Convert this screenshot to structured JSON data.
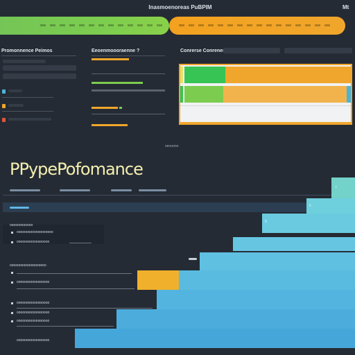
{
  "header": {
    "title": "Inasmoenoreas PuBPIM",
    "right_label": "Mt"
  },
  "panels": [
    {
      "title": "Promonnence Peimos"
    },
    {
      "title": "Eeoenmoooraenne ?"
    },
    {
      "title": "Conrerse Conrenens"
    }
  ],
  "section_caption": "oeooono",
  "page_title": "PPypePofomance",
  "stair_labels": [
    "7",
    "5",
    "5"
  ],
  "rows": [
    {
      "label": "oooooooooooo"
    },
    {
      "label": "ooooooooooooooooooo"
    },
    {
      "label": "ooooooooooooooooo"
    },
    {
      "label": "ooooooooooooooooooo"
    },
    {
      "label": "ooooooooooooooooo"
    },
    {
      "label": "ooooooooooooooooo"
    },
    {
      "label": "ooooooooooooooooo"
    },
    {
      "label": "ooooooooooooooooo"
    },
    {
      "label": "ooooooooooooooooo"
    }
  ],
  "colors": {
    "background": "#252b34",
    "accent_green": "#7ccd4f",
    "accent_orange": "#f0a62c",
    "accent_blue": "#4ab3d8",
    "accent_cyan": "#6ed0dc",
    "accent_red": "#e0553a"
  },
  "icons": [
    "square-blue-icon",
    "square-orange-icon",
    "square-red-icon"
  ]
}
